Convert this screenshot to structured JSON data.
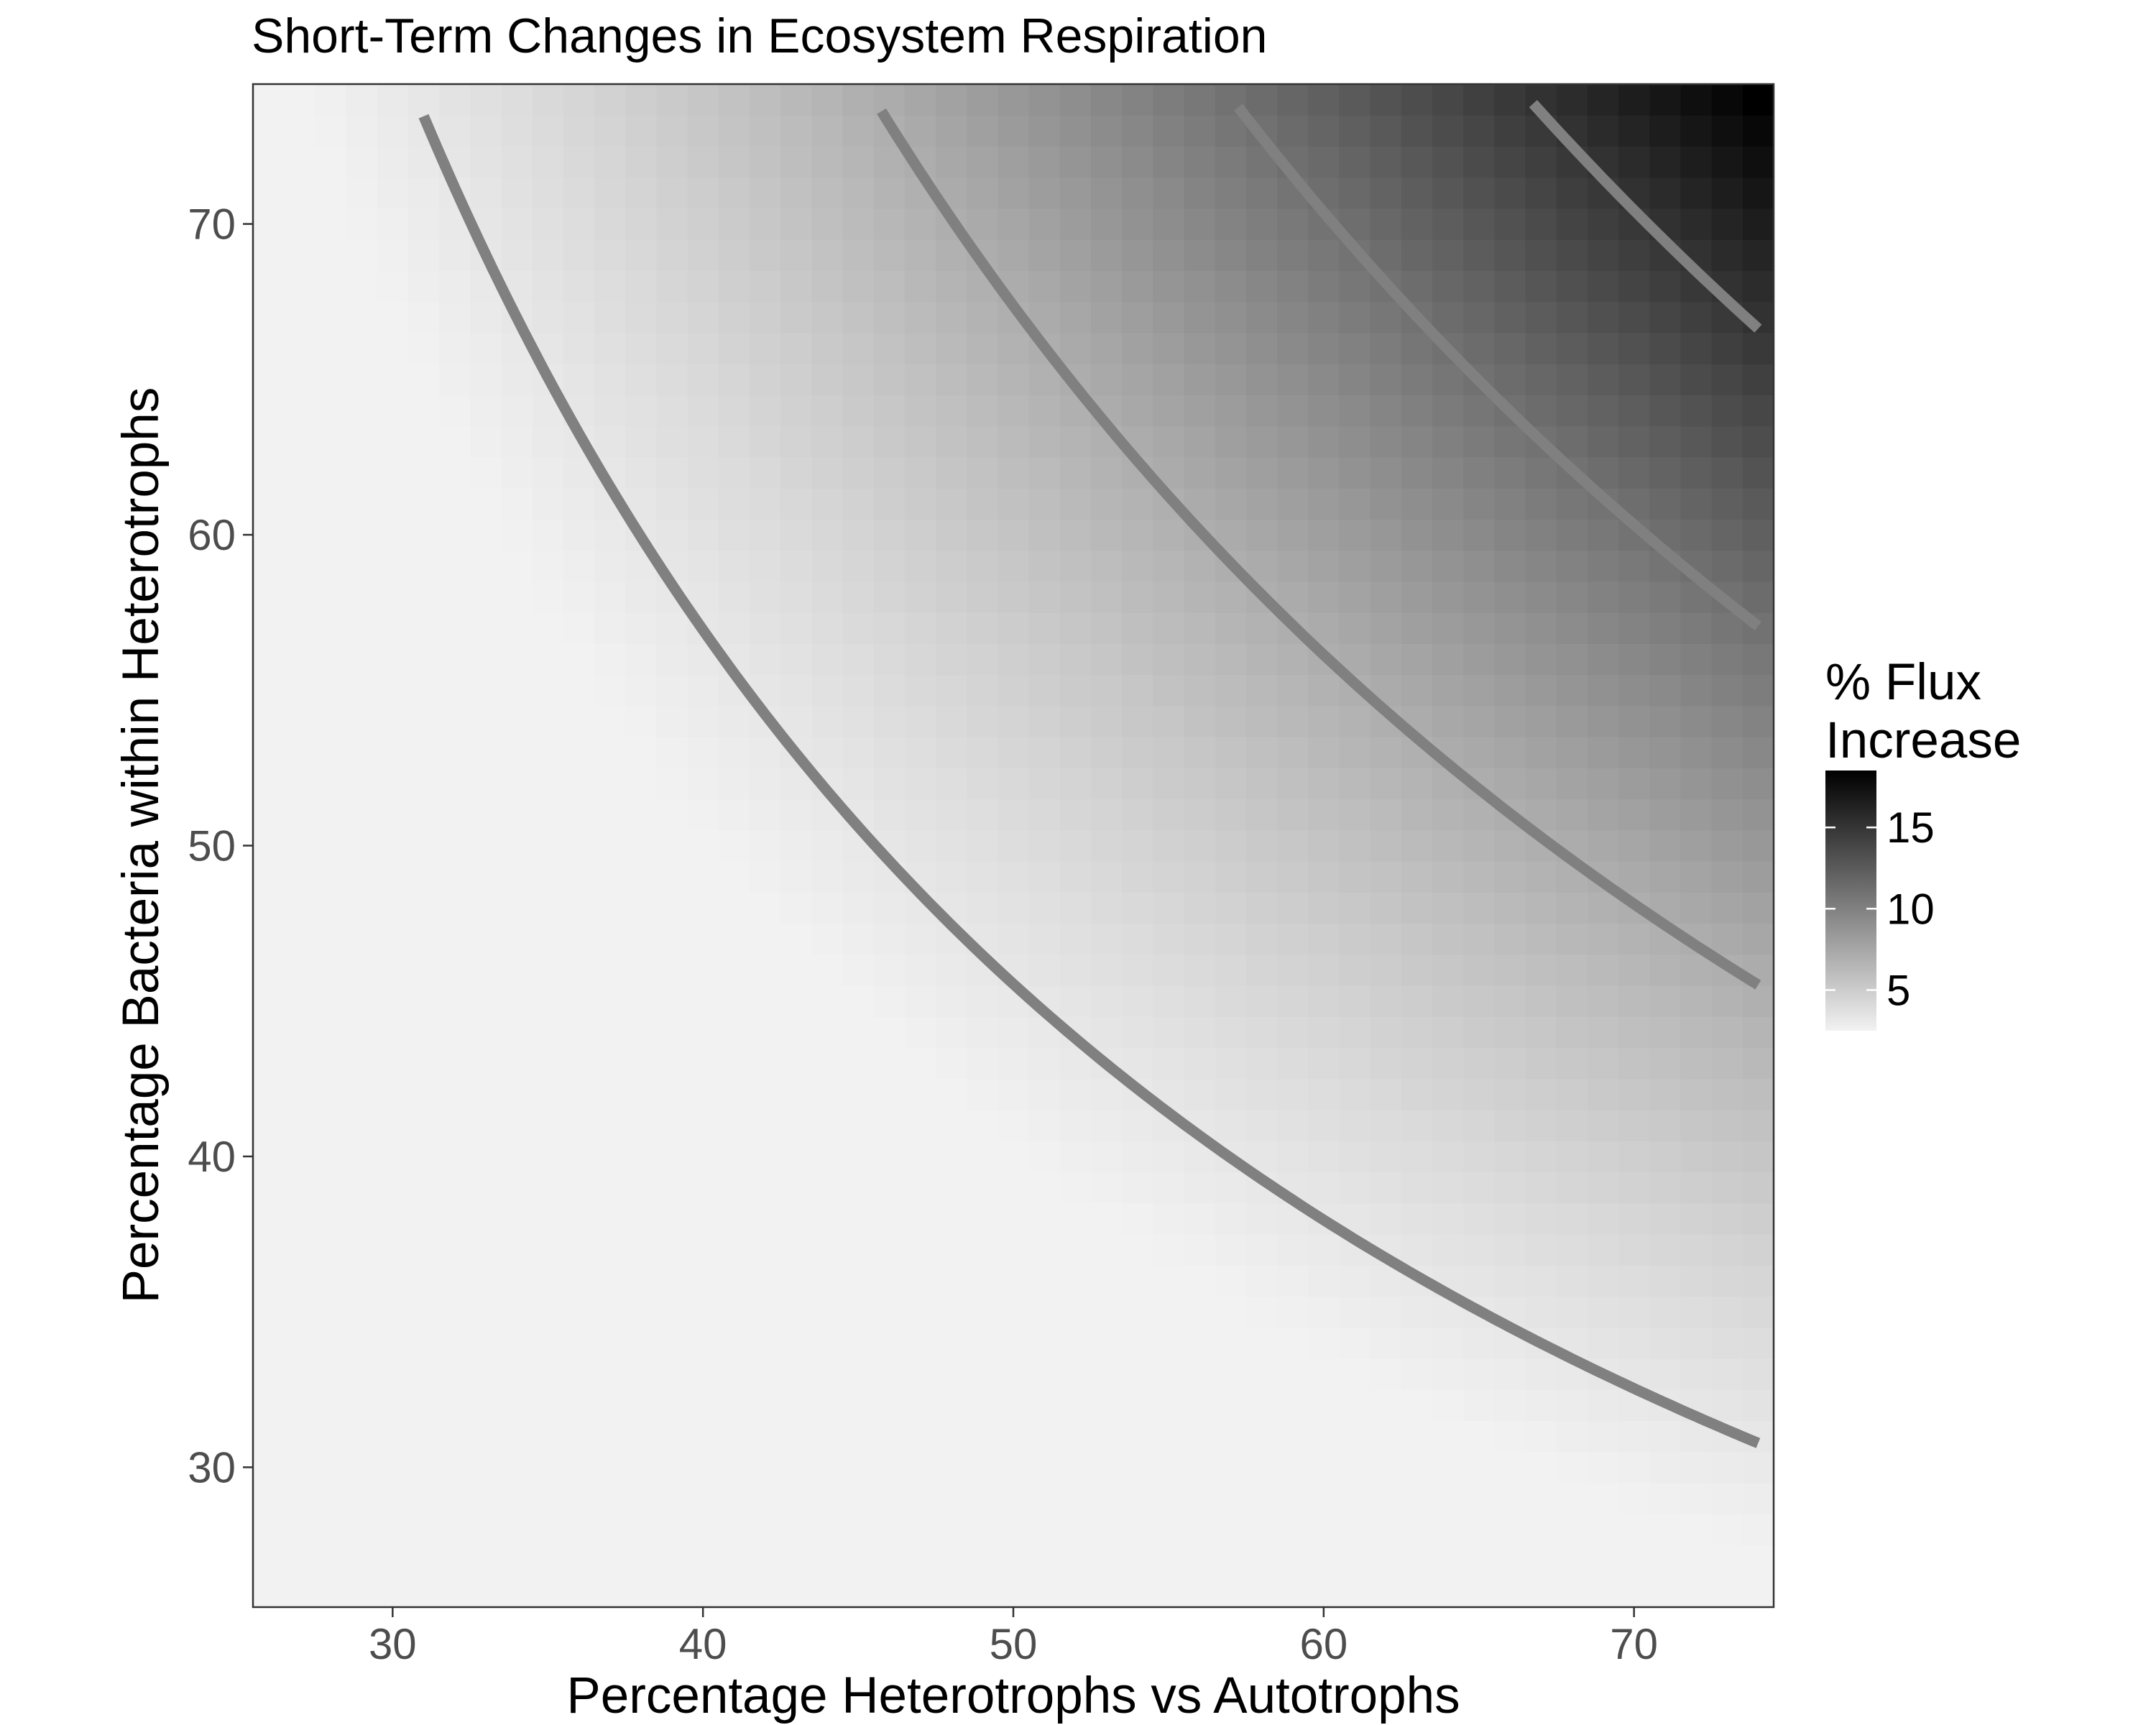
{
  "chart_data": {
    "type": "heatmap",
    "title": "Short-Term Changes in Ecosystem Respiration",
    "xlabel": "Percentage Heterotrophs vs Autotrophs",
    "ylabel": "Percentage Bacteria within Heterotrophs",
    "xlim": [
      25.5,
      74.5
    ],
    "ylim": [
      25.5,
      74.5
    ],
    "x_ticks": [
      30,
      40,
      50,
      60,
      70
    ],
    "y_ticks": [
      30,
      40,
      50,
      60,
      70
    ],
    "grid": false,
    "colorscale": {
      "low": "#f2f2f2",
      "high": "#000000"
    },
    "value_function": "fill = 18.5 * (x/74)^2 * (y/74)^2, estimated from the shading and contour positions",
    "fill_range": [
      2.5,
      18.5
    ],
    "contour_levels": [
      3.2,
      7,
      11,
      15
    ],
    "contour_color": "#808080",
    "legend": {
      "title_lines": [
        "% Flux",
        "Increase"
      ],
      "ticks": [
        5,
        10,
        15
      ],
      "position": "right"
    }
  }
}
